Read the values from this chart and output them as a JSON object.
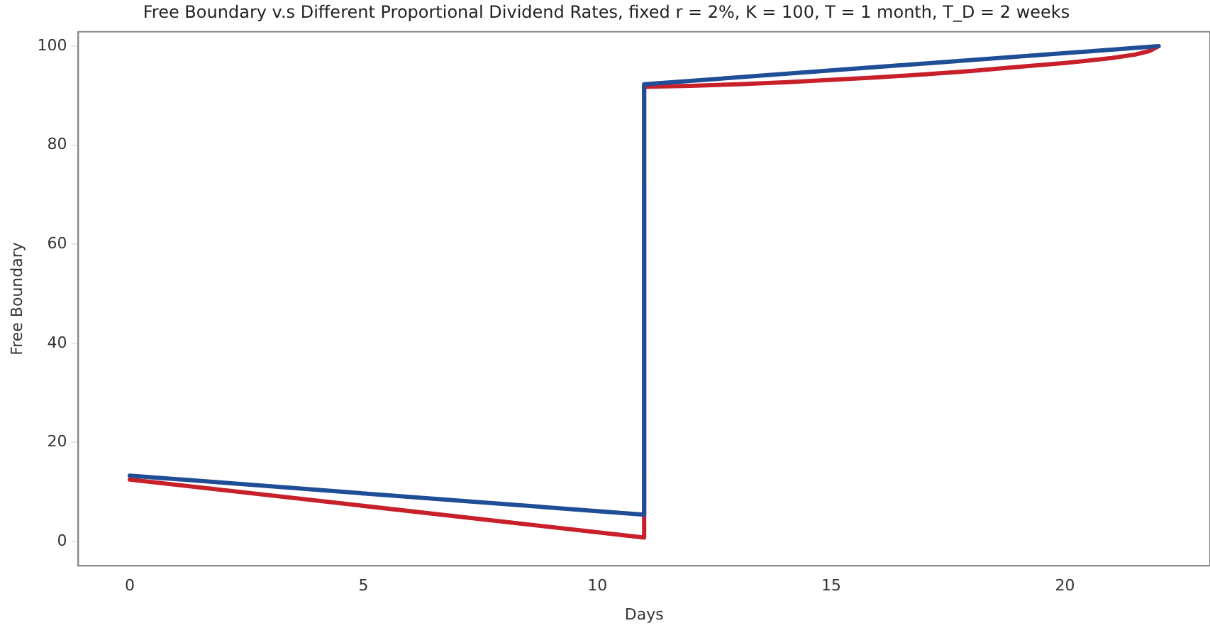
{
  "chart_data": {
    "type": "line",
    "title": "Free Boundary v.s Different Proportional Dividend Rates, fixed r = 2%, K = 100, T = 1 month, T_D = 2 weeks",
    "xlabel": "Days",
    "ylabel": "Free Boundary",
    "xlim": [
      -1.1,
      23.1
    ],
    "xticks": [
      0,
      5,
      10,
      15,
      20
    ],
    "ylim": [
      -4.9,
      102.9
    ],
    "yticks": [
      0,
      20,
      40,
      60,
      80,
      100
    ],
    "grid": false,
    "legend": false,
    "marker": "none",
    "line_style": "solid",
    "series": [
      {
        "color": "#1f4e96",
        "x": [
          0,
          11,
          11,
          22
        ],
        "values": [
          13.3,
          5.4,
          92.3,
          100
        ]
      },
      {
        "color": "#c8202a",
        "x": [
          0,
          11,
          11,
          12,
          13,
          14,
          15,
          16,
          17,
          18,
          19,
          20,
          21,
          21.5,
          21.8,
          22
        ],
        "values": [
          12.5,
          0.8,
          91.8,
          92.0,
          92.3,
          92.7,
          93.2,
          93.7,
          94.3,
          95.0,
          95.8,
          96.6,
          97.6,
          98.3,
          99.0,
          100
        ]
      }
    ]
  }
}
